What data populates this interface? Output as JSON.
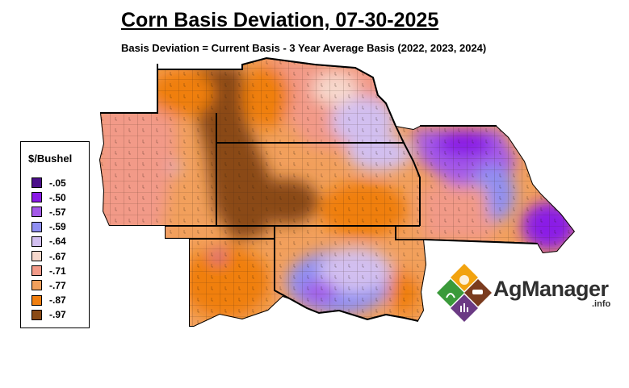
{
  "title": "Corn Basis Deviation, 07-30-2025",
  "subtitle": "Basis Deviation = Current Basis - 3 Year Average Basis (2022, 2023, 2024)",
  "legend": {
    "title": "$/Bushel",
    "items": [
      {
        "label": "-.05",
        "color": "#4b0f8a"
      },
      {
        "label": "-.50",
        "color": "#8a1ae6"
      },
      {
        "label": "-.57",
        "color": "#a45ae8"
      },
      {
        "label": "-.59",
        "color": "#8f8ff2"
      },
      {
        "label": "-.64",
        "color": "#d2bff0"
      },
      {
        "label": "-.67",
        "color": "#f7d8cc"
      },
      {
        "label": "-.71",
        "color": "#f29a88"
      },
      {
        "label": "-.77",
        "color": "#f2a05c"
      },
      {
        "label": "-.87",
        "color": "#f07f10"
      },
      {
        "label": "-.97",
        "color": "#8a4a16"
      }
    ]
  },
  "logo": {
    "name": "AgManager",
    "suffix": ".info"
  },
  "colors": {
    "brown": "#8a4a16",
    "orange": "#f07f10",
    "light_orange": "#f2a05c",
    "salmon": "#f29a88",
    "pink": "#f7d8cc",
    "lavender": "#d2bff0",
    "periwinkle": "#8f8ff2",
    "purple": "#a45ae8",
    "violet": "#8a1ae6"
  }
}
